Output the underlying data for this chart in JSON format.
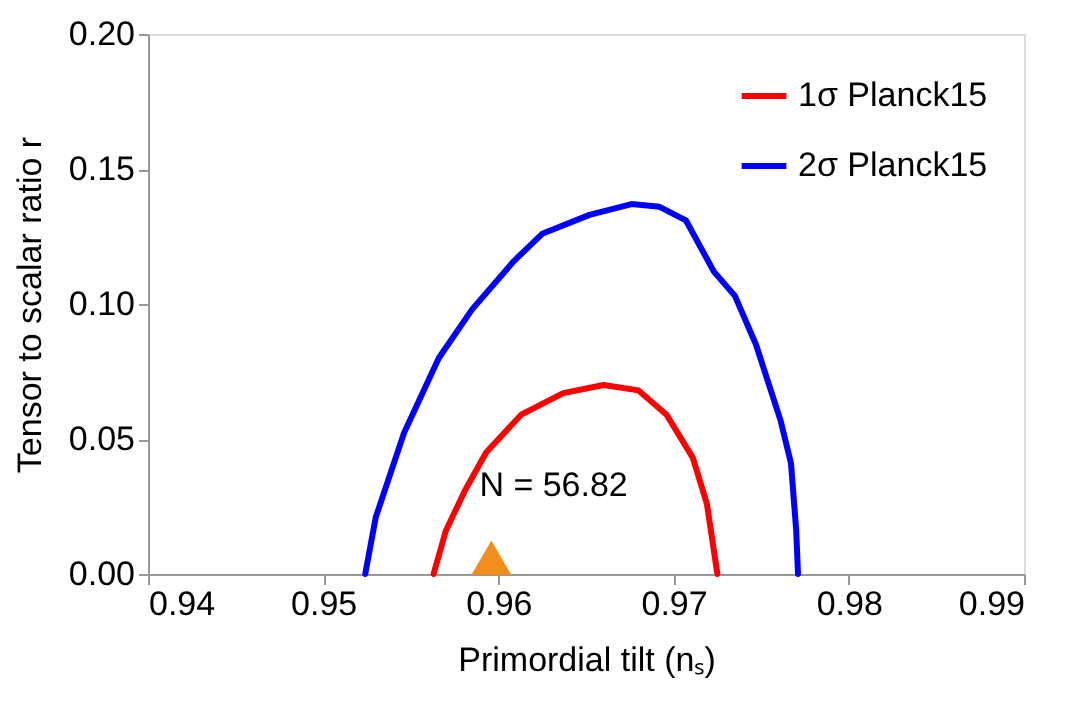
{
  "chart_data": {
    "type": "line",
    "xlabel": "Primordial tilt (nₛ)",
    "ylabel": "Tensor to scalar ratio r",
    "xlim": [
      0.94,
      0.99
    ],
    "xticks": [
      0.94,
      0.95,
      0.96,
      0.97,
      0.98,
      0.99
    ],
    "ylim": [
      0,
      0.2
    ],
    "yticks": [
      {
        "value": 0,
        "label": "0.00"
      },
      0.05,
      {
        "value": 0.1,
        "label": "0.10"
      },
      0.15,
      {
        "value": 0.2,
        "label": "0.20"
      }
    ],
    "grid": false,
    "legend": "top right",
    "line_style": "solid",
    "marker": "none",
    "series": [
      {
        "name": "1σ Planck15",
        "color": "#ff0000",
        "x": [
          0.9563,
          0.957,
          0.9581,
          0.9593,
          0.9613,
          0.9637,
          0.966,
          0.968,
          0.9696,
          0.9711,
          0.9719,
          0.9725
        ],
        "values": [
          0,
          0.016,
          0.031,
          0.045,
          0.059,
          0.067,
          0.07,
          0.068,
          0.059,
          0.043,
          0.026,
          0
        ]
      },
      {
        "name": "2σ Planck15",
        "color": "#0000ff",
        "x": [
          0.9524,
          0.953,
          0.9546,
          0.9566,
          0.9585,
          0.9609,
          0.9625,
          0.9652,
          0.9676,
          0.9692,
          0.9707,
          0.9723,
          0.9735,
          0.9747,
          0.9761,
          0.9767,
          0.977,
          0.9771
        ],
        "values": [
          0,
          0.021,
          0.052,
          0.08,
          0.098,
          0.116,
          0.126,
          0.133,
          0.137,
          0.136,
          0.131,
          0.112,
          0.103,
          0.085,
          0.057,
          0.041,
          0.016,
          0
        ]
      },
      {
        "type": "scatter",
        "marker": "triangle",
        "color": "#f28e1c",
        "x": [
          0.9596
        ],
        "values": [
          0.006
        ]
      }
    ],
    "annotations": [
      {
        "text": "N = 56.82",
        "x": 0.9596,
        "y": 0.006
      }
    ]
  }
}
